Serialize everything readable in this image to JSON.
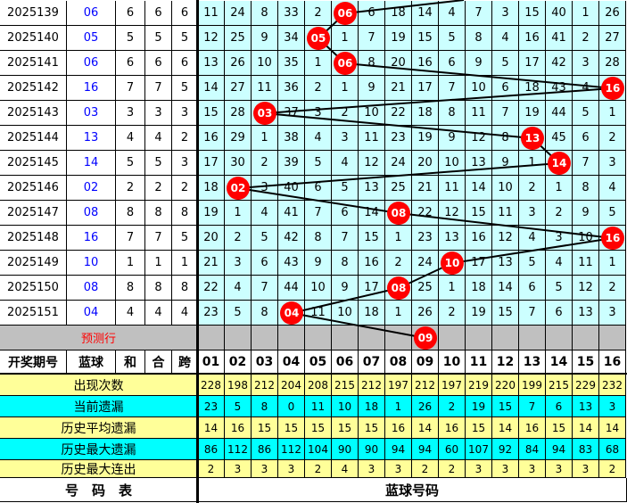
{
  "rows": [
    {
      "period": "2025139",
      "blue": "06",
      "sum": "6",
      "he": "6",
      "kua": "6",
      "cells": [
        11,
        24,
        8,
        33,
        2,
        "06",
        6,
        18,
        14,
        4,
        7,
        3,
        15,
        40,
        1,
        26
      ]
    },
    {
      "period": "2025140",
      "blue": "05",
      "sum": "5",
      "he": "5",
      "kua": "5",
      "cells": [
        12,
        25,
        9,
        34,
        "05",
        1,
        7,
        19,
        15,
        5,
        8,
        4,
        16,
        41,
        2,
        27
      ]
    },
    {
      "period": "2025141",
      "blue": "06",
      "sum": "6",
      "he": "6",
      "kua": "6",
      "cells": [
        13,
        26,
        10,
        35,
        1,
        "06",
        8,
        20,
        16,
        6,
        9,
        5,
        17,
        42,
        3,
        28
      ]
    },
    {
      "period": "2025142",
      "blue": "16",
      "sum": "7",
      "he": "7",
      "kua": "5",
      "cells": [
        14,
        27,
        11,
        36,
        2,
        1,
        9,
        21,
        17,
        7,
        10,
        6,
        18,
        43,
        4,
        "16"
      ]
    },
    {
      "period": "2025143",
      "blue": "03",
      "sum": "3",
      "he": "3",
      "kua": "3",
      "cells": [
        15,
        28,
        "03",
        37,
        3,
        2,
        10,
        22,
        18,
        8,
        11,
        7,
        19,
        44,
        5,
        1
      ]
    },
    {
      "period": "2025144",
      "blue": "13",
      "sum": "4",
      "he": "4",
      "kua": "2",
      "cells": [
        16,
        29,
        1,
        38,
        4,
        3,
        11,
        23,
        19,
        9,
        12,
        8,
        "13",
        45,
        6,
        2
      ]
    },
    {
      "period": "2025145",
      "blue": "14",
      "sum": "5",
      "he": "5",
      "kua": "3",
      "cells": [
        17,
        30,
        2,
        39,
        5,
        4,
        12,
        24,
        20,
        10,
        13,
        9,
        1,
        "14",
        7,
        3
      ]
    },
    {
      "period": "2025146",
      "blue": "02",
      "sum": "2",
      "he": "2",
      "kua": "2",
      "cells": [
        18,
        "02",
        3,
        40,
        6,
        5,
        13,
        25,
        21,
        11,
        14,
        10,
        2,
        1,
        8,
        4
      ]
    },
    {
      "period": "2025147",
      "blue": "08",
      "sum": "8",
      "he": "8",
      "kua": "8",
      "cells": [
        19,
        1,
        4,
        41,
        7,
        6,
        14,
        "08",
        22,
        12,
        15,
        11,
        3,
        2,
        9,
        5
      ]
    },
    {
      "period": "2025148",
      "blue": "16",
      "sum": "7",
      "he": "7",
      "kua": "5",
      "cells": [
        20,
        2,
        5,
        42,
        8,
        7,
        15,
        1,
        23,
        13,
        16,
        12,
        4,
        3,
        10,
        "16"
      ]
    },
    {
      "period": "2025149",
      "blue": "10",
      "sum": "1",
      "he": "1",
      "kua": "1",
      "cells": [
        21,
        3,
        6,
        43,
        9,
        8,
        16,
        2,
        24,
        "10",
        17,
        13,
        5,
        4,
        11,
        1
      ]
    },
    {
      "period": "2025150",
      "blue": "08",
      "sum": "8",
      "he": "8",
      "kua": "8",
      "cells": [
        22,
        4,
        7,
        44,
        10,
        9,
        17,
        "08",
        25,
        1,
        18,
        14,
        6,
        5,
        12,
        2
      ]
    },
    {
      "period": "2025151",
      "blue": "04",
      "sum": "4",
      "he": "4",
      "kua": "4",
      "cells": [
        23,
        5,
        8,
        "04",
        11,
        10,
        18,
        1,
        26,
        2,
        19,
        15,
        7,
        6,
        13,
        3
      ]
    }
  ],
  "predict": {
    "label": "预测行",
    "blue": "09"
  },
  "header": {
    "period": "开奖期号",
    "blue": "蓝球",
    "sum": "和",
    "he": "合",
    "kua": "跨",
    "numbers": [
      "01",
      "02",
      "03",
      "04",
      "05",
      "06",
      "07",
      "08",
      "09",
      "10",
      "11",
      "12",
      "13",
      "14",
      "15",
      "16"
    ]
  },
  "stats": [
    {
      "label": "出现次数",
      "values": [
        228,
        198,
        212,
        204,
        208,
        215,
        212,
        197,
        212,
        197,
        219,
        220,
        199,
        215,
        229,
        232
      ]
    },
    {
      "label": "当前遗漏",
      "values": [
        23,
        5,
        8,
        0,
        11,
        10,
        18,
        1,
        26,
        2,
        19,
        15,
        7,
        6,
        13,
        3
      ]
    },
    {
      "label": "历史平均遗漏",
      "values": [
        14,
        16,
        15,
        15,
        15,
        15,
        15,
        16,
        14,
        16,
        15,
        14,
        16,
        15,
        14,
        14
      ]
    },
    {
      "label": "历史最大遗漏",
      "values": [
        86,
        112,
        86,
        112,
        104,
        90,
        90,
        94,
        94,
        60,
        107,
        92,
        84,
        94,
        83,
        68
      ]
    },
    {
      "label": "历史最大连出",
      "values": [
        2,
        3,
        3,
        3,
        2,
        4,
        3,
        3,
        2,
        2,
        3,
        3,
        3,
        3,
        3,
        2
      ]
    }
  ],
  "footer": {
    "left": "号　码　表",
    "right": "蓝球号码"
  },
  "colors": {
    "grid": "#ccffff",
    "ball": "#ff0000",
    "yellow": "#ffff99",
    "cyan": "#00ffff",
    "predict": "#c0c0c0",
    "blue_text": "#0000ff"
  }
}
